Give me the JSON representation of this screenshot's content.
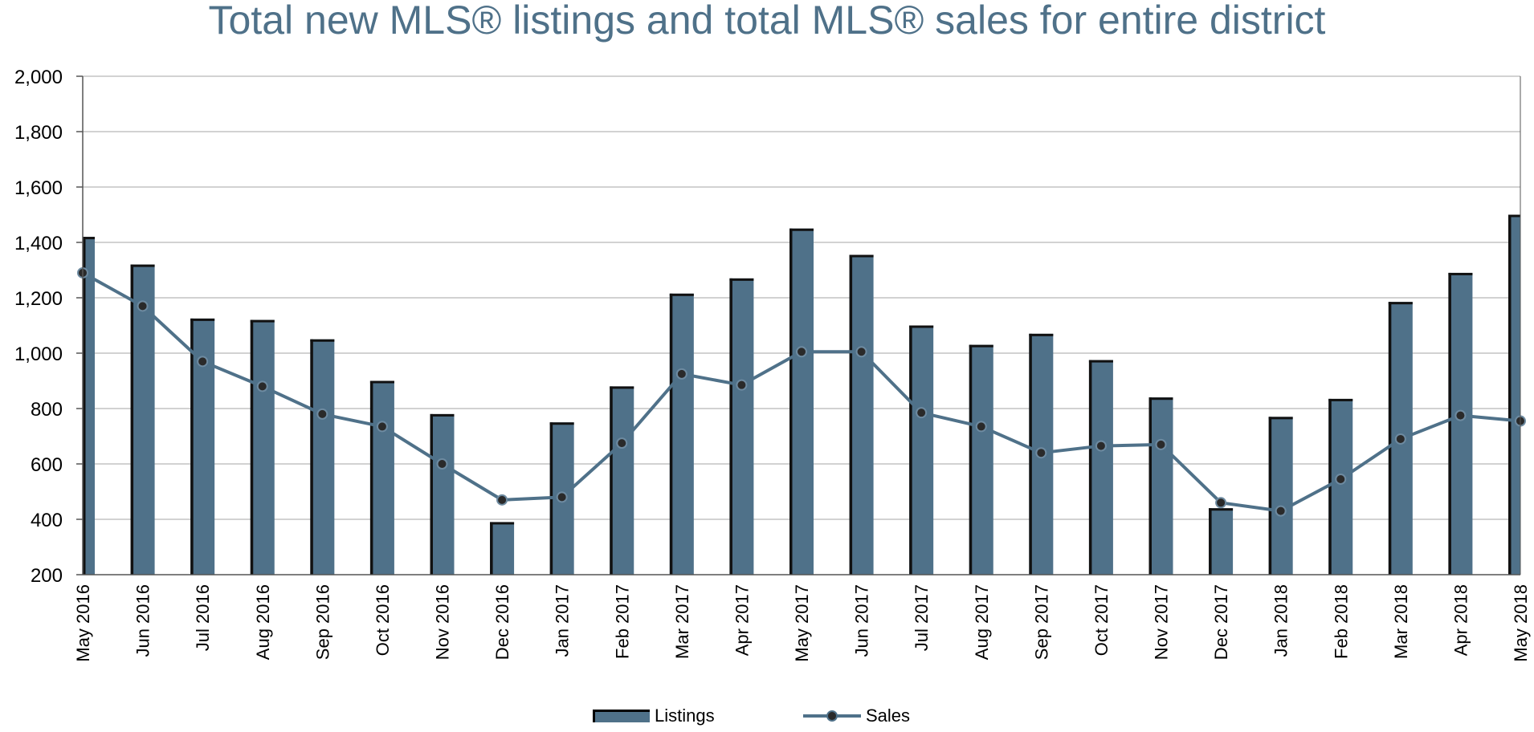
{
  "chart_data": {
    "type": "bar",
    "title": "Total new MLS® listings and total MLS® sales for entire district",
    "xlabel": "",
    "ylabel": "",
    "ylim": [
      200,
      2000
    ],
    "yticks": [
      200,
      400,
      600,
      800,
      1000,
      1200,
      1400,
      1600,
      1800,
      2000
    ],
    "ytick_labels": [
      "200",
      "400",
      "600",
      "800",
      "1,000",
      "1,200",
      "1,400",
      "1,600",
      "1,800",
      "2,000"
    ],
    "grid": true,
    "legend_placement": "bottom-center",
    "categories": [
      "May 2016",
      "Jun 2016",
      "Jul 2016",
      "Aug 2016",
      "Sep 2016",
      "Oct 2016",
      "Nov 2016",
      "Dec 2016",
      "Jan 2017",
      "Feb 2017",
      "Mar 2017",
      "Apr 2017",
      "May 2017",
      "Jun 2017",
      "Jul 2017",
      "Aug 2017",
      "Sep 2017",
      "Oct 2017",
      "Nov 2017",
      "Dec 2017",
      "Jan 2018",
      "Feb 2018",
      "Mar 2018",
      "Apr 2018",
      "May 2018"
    ],
    "series": [
      {
        "name": "Listings",
        "type": "bar",
        "color": "#4f7189",
        "values": [
          1420,
          1320,
          1125,
          1120,
          1050,
          900,
          780,
          390,
          750,
          880,
          1215,
          1270,
          1450,
          1355,
          1100,
          1030,
          1070,
          975,
          840,
          440,
          770,
          835,
          1185,
          1290,
          1500
        ]
      },
      {
        "name": "Sales",
        "type": "line",
        "color": "#4f7189",
        "values": [
          1290,
          1170,
          970,
          880,
          780,
          735,
          600,
          470,
          480,
          675,
          925,
          885,
          1005,
          1005,
          785,
          735,
          640,
          665,
          670,
          460,
          430,
          545,
          690,
          775,
          755
        ]
      }
    ]
  }
}
